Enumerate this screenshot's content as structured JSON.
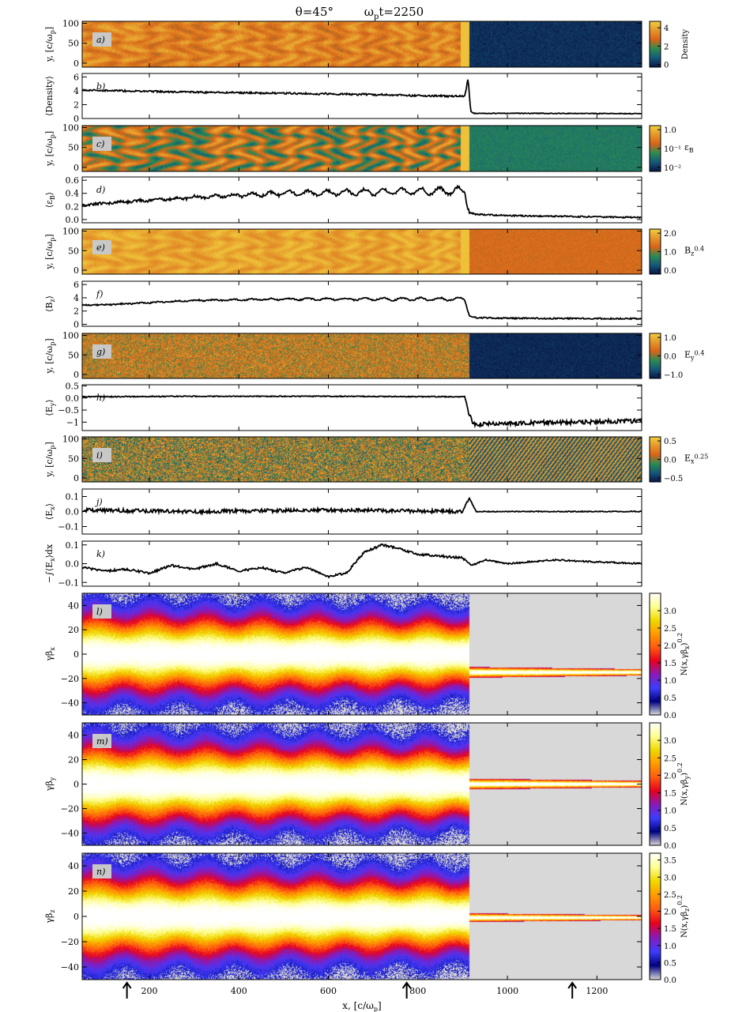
{
  "figure_title": {
    "theta": "θ=45°",
    "time": "ω",
    "time_sub": "p",
    "time_rest": "t=2250"
  },
  "colors": {
    "density_cmap": [
      "#0a1545",
      "#15577a",
      "#2a8c52",
      "#d86418",
      "#e4962a",
      "#f2cf3e"
    ],
    "phase_cmap": [
      "#d8d8d8",
      "#000080",
      "#3d3dff",
      "#8a1ab8",
      "#e8001e",
      "#ff5a10",
      "#ff9a00",
      "#f0d800",
      "#ffff90",
      "#ffffff"
    ],
    "line": "#000000",
    "label_box": "#c8c8c8"
  },
  "chart_data": [
    {
      "id": "a",
      "type": "heatmap",
      "panel_label": "a)",
      "ylabel": "y, [c/ω",
      "ylabel_sub": "p",
      "ylabel_end": "]",
      "yticks": [
        0,
        50,
        100
      ],
      "ylim": [
        -10,
        105
      ],
      "xlim": [
        50,
        1300
      ],
      "shock_x": 915,
      "colorbar": {
        "label": "Density",
        "ticks": [
          "0",
          "2",
          "4"
        ],
        "range": [
          0,
          5
        ]
      }
    },
    {
      "id": "b",
      "type": "line",
      "panel_label": "b)",
      "ylabel": "⟨Density⟩",
      "yticks": [
        0,
        2,
        4,
        6
      ],
      "ylim": [
        0,
        6.5
      ],
      "xlim": [
        50,
        1300
      ],
      "x": [
        50,
        300,
        600,
        905,
        912,
        918,
        925,
        1000,
        1300
      ],
      "y": [
        4.1,
        3.8,
        3.55,
        3.2,
        5.9,
        1.0,
        0.75,
        0.75,
        0.7
      ],
      "noise": 0.12,
      "osc_amp": 0.05,
      "post_noise": 0.05
    },
    {
      "id": "c",
      "type": "heatmap",
      "panel_label": "c)",
      "ylabel": "y, [c/ω",
      "ylabel_sub": "p",
      "ylabel_end": "]",
      "yticks": [
        0,
        50,
        100
      ],
      "ylim": [
        -10,
        105
      ],
      "xlim": [
        50,
        1300
      ],
      "shock_x": 915,
      "colorbar": {
        "label": "ε",
        "label_sub": "B",
        "ticks": [
          "1.0",
          "10⁻¹",
          "10⁻²"
        ],
        "range": [
          0.01,
          1
        ]
      }
    },
    {
      "id": "d",
      "type": "line",
      "panel_label": "d)",
      "ylabel": "⟨ε",
      "ylabel_sub": "B",
      "ylabel_end": "⟩",
      "yticks": [
        0.0,
        0.2,
        0.4,
        0.6
      ],
      "ylim": [
        -0.05,
        0.65
      ],
      "xlim": [
        50,
        1300
      ],
      "x": [
        50,
        100,
        300,
        500,
        700,
        905,
        915,
        930,
        1000,
        1300
      ],
      "y": [
        0.22,
        0.25,
        0.34,
        0.4,
        0.42,
        0.44,
        0.1,
        0.08,
        0.06,
        0.03
      ],
      "noise": 0.02,
      "osc_amp": 0.06,
      "post_noise": 0.01
    },
    {
      "id": "e",
      "type": "heatmap",
      "panel_label": "e)",
      "ylabel": "y, [c/ω",
      "ylabel_sub": "p",
      "ylabel_end": "]",
      "yticks": [
        0,
        50,
        100
      ],
      "ylim": [
        -10,
        105
      ],
      "xlim": [
        50,
        1300
      ],
      "shock_x": 915,
      "colorbar": {
        "label": "B",
        "label_sub": "z",
        "label_sup": "0.4",
        "ticks": [
          "2.0",
          "1.0",
          "0.0"
        ],
        "range": [
          0,
          2
        ]
      }
    },
    {
      "id": "f",
      "type": "line",
      "panel_label": "f)",
      "ylabel": "⟨B",
      "ylabel_sub": "z",
      "ylabel_end": "⟩",
      "yticks": [
        0,
        2,
        4,
        6
      ],
      "ylim": [
        -0.3,
        6.5
      ],
      "xlim": [
        50,
        1300
      ],
      "x": [
        50,
        120,
        300,
        500,
        700,
        905,
        915,
        930,
        1000,
        1300
      ],
      "y": [
        2.9,
        3.0,
        3.6,
        3.8,
        3.8,
        3.8,
        1.3,
        1.0,
        0.9,
        0.85
      ],
      "noise": 0.1,
      "osc_amp": 0.25,
      "post_noise": 0.1
    },
    {
      "id": "g",
      "type": "heatmap",
      "panel_label": "g)",
      "ylabel": "y, [c/ω",
      "ylabel_sub": "p",
      "ylabel_end": "]",
      "yticks": [
        0,
        50,
        100
      ],
      "ylim": [
        -10,
        105
      ],
      "xlim": [
        50,
        1300
      ],
      "shock_x": 915,
      "colorbar": {
        "label": "E",
        "label_sub": "y",
        "label_sup": "0.4",
        "ticks": [
          "1.0",
          "0.0",
          "−1.0"
        ],
        "range": [
          -1,
          1
        ]
      }
    },
    {
      "id": "h",
      "type": "line",
      "panel_label": "h)",
      "ylabel": "⟨E",
      "ylabel_sub": "y",
      "ylabel_end": "⟩",
      "yticks": [
        -1.0,
        -0.5,
        0.0,
        0.5
      ],
      "ylim": [
        -1.35,
        0.55
      ],
      "xlim": [
        50,
        1300
      ],
      "x": [
        50,
        300,
        600,
        905,
        915,
        925,
        1000,
        1300
      ],
      "y": [
        0.05,
        0.07,
        0.07,
        0.05,
        -0.7,
        -1.1,
        -1.05,
        -0.95
      ],
      "noise": 0.02,
      "osc_amp": 0.0,
      "post_noise": 0.09
    },
    {
      "id": "i",
      "type": "heatmap",
      "panel_label": "i)",
      "ylabel": "y, [c/ω",
      "ylabel_sub": "p",
      "ylabel_end": "]",
      "yticks": [
        0,
        50,
        100
      ],
      "ylim": [
        -10,
        105
      ],
      "xlim": [
        50,
        1300
      ],
      "shock_x": 915,
      "colorbar": {
        "label": "E",
        "label_sub": "x",
        "label_sup": "0.25",
        "ticks": [
          "0.5",
          "0.0",
          "−0.5"
        ],
        "range": [
          -0.75,
          0.75
        ]
      }
    },
    {
      "id": "j",
      "type": "line",
      "panel_label": "j)",
      "ylabel": "⟨E",
      "ylabel_sub": "x",
      "ylabel_end": "⟩",
      "yticks": [
        -0.1,
        0.0,
        0.1
      ],
      "ylim": [
        -0.15,
        0.15
      ],
      "xlim": [
        50,
        1300
      ],
      "x": [
        50,
        300,
        600,
        900,
        915,
        930,
        1300
      ],
      "y": [
        0.01,
        0.0,
        0.01,
        0.0,
        0.09,
        0.0,
        0.0
      ],
      "noise": 0.012,
      "osc_amp": 0.0,
      "post_noise": 0.003
    },
    {
      "id": "k",
      "type": "line",
      "panel_label": "k)",
      "ylabel": "−∫⟨E",
      "ylabel_sub": "x",
      "ylabel_end": "⟩dx",
      "yticks": [
        -0.1,
        0.0,
        0.1
      ],
      "ylim": [
        -0.12,
        0.12
      ],
      "xlim": [
        50,
        1300
      ],
      "x": [
        50,
        100,
        150,
        200,
        250,
        300,
        350,
        400,
        450,
        500,
        550,
        600,
        640,
        680,
        720,
        760,
        800,
        850,
        900,
        920,
        950,
        1000,
        1100,
        1200,
        1300
      ],
      "y": [
        -0.02,
        -0.04,
        -0.03,
        -0.05,
        -0.01,
        -0.03,
        0.0,
        -0.04,
        -0.02,
        -0.05,
        -0.02,
        -0.07,
        -0.05,
        0.06,
        0.1,
        0.08,
        0.05,
        0.04,
        0.03,
        -0.01,
        0.02,
        0.0,
        0.02,
        0.01,
        0.0
      ],
      "noise": 0.006,
      "osc_amp": 0.0,
      "post_noise": 0.004
    },
    {
      "id": "l",
      "type": "heatmap",
      "subtype": "phase",
      "panel_label": "l)",
      "ylabel": "γβ",
      "ylabel_sub": "x",
      "yticks": [
        -40,
        -20,
        0,
        20,
        40
      ],
      "ylim": [
        -50,
        50
      ],
      "xlim": [
        50,
        1300
      ],
      "shock_x": 915,
      "upstream_center": -15,
      "upstream_width": 4.5,
      "colorbar": {
        "label": "N(x,γβ",
        "label_sub": "x",
        "label_end": ")",
        "label_sup": "0.2",
        "ticks": [
          "0.0",
          "0.5",
          "1.0",
          "1.5",
          "2.0",
          "2.5",
          "3.0"
        ],
        "range": [
          0,
          3.5
        ]
      }
    },
    {
      "id": "m",
      "type": "heatmap",
      "subtype": "phase",
      "panel_label": "m)",
      "ylabel": "γβ",
      "ylabel_sub": "y",
      "yticks": [
        -40,
        -20,
        0,
        20,
        40
      ],
      "ylim": [
        -50,
        50
      ],
      "xlim": [
        50,
        1300
      ],
      "shock_x": 915,
      "upstream_center": 0,
      "upstream_width": 4.5,
      "colorbar": {
        "label": "N(x,γβ",
        "label_sub": "y",
        "label_end": ")",
        "label_sup": "0.2",
        "ticks": [
          "0.0",
          "0.5",
          "1.0",
          "1.5",
          "2.0",
          "2.5",
          "3.0"
        ],
        "range": [
          0,
          3.5
        ]
      }
    },
    {
      "id": "n",
      "type": "heatmap",
      "subtype": "phase",
      "panel_label": "n)",
      "ylabel": "γβ",
      "ylabel_sub": "z",
      "yticks": [
        -40,
        -20,
        0,
        20,
        40
      ],
      "ylim": [
        -50,
        50
      ],
      "xlim": [
        50,
        1300
      ],
      "shock_x": 915,
      "upstream_center": -1,
      "upstream_width": 3.5,
      "colorbar": {
        "label": "N(x,γβ",
        "label_sub": "z",
        "label_end": ")",
        "label_sup": "0.2",
        "ticks": [
          "0.0",
          "0.5",
          "1.0",
          "1.5",
          "2.0",
          "2.5",
          "3.0",
          "3.5"
        ],
        "range": [
          0,
          3.7
        ]
      }
    }
  ],
  "x_axis": {
    "label": "x, [c/ω",
    "label_sub": "p",
    "label_end": "]",
    "ticks": [
      200,
      400,
      600,
      800,
      1000,
      1200
    ],
    "markers": [
      150,
      775,
      1145
    ]
  }
}
